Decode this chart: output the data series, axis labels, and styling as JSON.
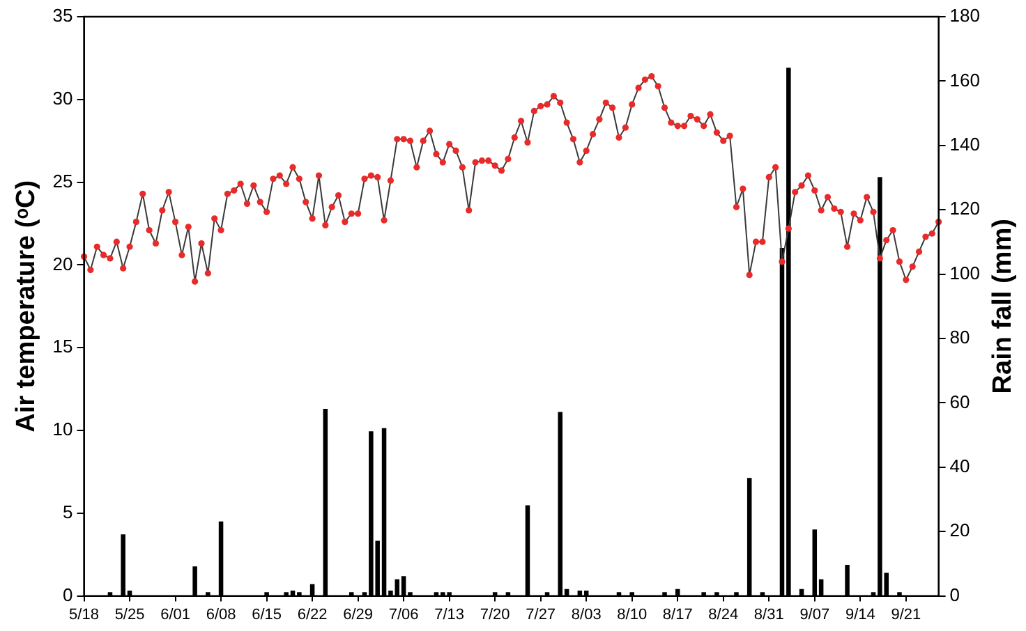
{
  "chart_data": {
    "type": "line",
    "ylabel": "Air temperature (ᵒC)",
    "y2label": "Rain fall (mm)",
    "grid": false,
    "legend": false,
    "marker": "circle",
    "categories": [
      "5/18",
      null,
      null,
      null,
      null,
      null,
      null,
      "5/25",
      null,
      null,
      null,
      null,
      null,
      null,
      "6/01",
      null,
      null,
      null,
      null,
      null,
      null,
      "6/08",
      null,
      null,
      null,
      null,
      null,
      null,
      "6/15",
      null,
      null,
      null,
      null,
      null,
      null,
      "6/22",
      null,
      null,
      null,
      null,
      null,
      null,
      "6/29",
      null,
      null,
      null,
      null,
      null,
      null,
      "7/06",
      null,
      null,
      null,
      null,
      null,
      null,
      "7/13",
      null,
      null,
      null,
      null,
      null,
      null,
      "7/20",
      null,
      null,
      null,
      null,
      null,
      null,
      "7/27",
      null,
      null,
      null,
      null,
      null,
      null,
      "8/03",
      null,
      null,
      null,
      null,
      null,
      null,
      "8/10",
      null,
      null,
      null,
      null,
      null,
      null,
      "8/17",
      null,
      null,
      null,
      null,
      null,
      null,
      "8/24",
      null,
      null,
      null,
      null,
      null,
      null,
      "8/31",
      null,
      null,
      null,
      null,
      null,
      null,
      "9/07",
      null,
      null,
      null,
      null,
      null,
      null,
      "9/14",
      null,
      null,
      null,
      null,
      null,
      null,
      "9/21",
      null,
      null,
      null,
      null,
      null
    ],
    "ylim": [
      0,
      35
    ],
    "yticks": [
      0,
      5,
      10,
      15,
      20,
      25,
      30,
      35
    ],
    "y2lim": [
      0,
      180
    ],
    "y2ticks": [
      0,
      20,
      40,
      60,
      80,
      100,
      120,
      140,
      160,
      180
    ],
    "series": [
      {
        "type": "bar",
        "axis": "y2",
        "color": "#000000",
        "values": [
          null,
          null,
          null,
          null,
          1,
          null,
          19,
          1.5,
          null,
          null,
          null,
          null,
          null,
          null,
          null,
          null,
          null,
          9,
          null,
          1,
          null,
          23,
          null,
          null,
          null,
          null,
          null,
          null,
          1,
          null,
          null,
          1,
          1.5,
          1,
          null,
          3.5,
          null,
          58,
          null,
          null,
          null,
          1,
          null,
          1,
          51,
          17,
          52,
          1.5,
          5,
          6,
          1,
          null,
          null,
          null,
          1,
          1,
          1,
          null,
          null,
          null,
          null,
          null,
          null,
          1,
          null,
          1,
          null,
          null,
          28,
          null,
          null,
          1,
          null,
          57,
          2,
          null,
          1.5,
          1.5,
          null,
          null,
          null,
          null,
          1,
          null,
          1,
          null,
          null,
          null,
          null,
          1,
          null,
          2,
          null,
          null,
          null,
          1,
          null,
          1,
          null,
          null,
          1,
          null,
          36.5,
          null,
          1,
          null,
          null,
          108,
          164,
          null,
          2,
          null,
          20.5,
          5,
          null,
          null,
          null,
          9.5,
          null,
          null,
          null,
          1,
          130,
          7,
          null,
          1,
          null,
          null,
          null,
          null,
          null,
          null
        ]
      },
      {
        "color": "#3a3a3a",
        "colors": [
          "#e82a2a",
          "#e82a2a",
          "#e82a2a",
          "#e82a2a",
          "#e82a2a",
          "#e82a2a",
          "#e82a2a",
          "#e82a2a",
          "#e82a2a",
          "#e82a2a",
          "#e82a2a",
          "#e82a2a",
          "#e82a2a",
          "#e82a2a",
          "#e82a2a",
          "#e82a2a",
          "#e82a2a",
          "#e82a2a",
          "#e82a2a",
          "#e82a2a",
          "#e82a2a",
          "#e82a2a",
          "#e82a2a",
          "#e82a2a",
          "#e82a2a",
          "#e82a2a",
          "#e82a2a",
          "#e82a2a",
          "#e82a2a",
          "#e82a2a",
          "#e82a2a",
          "#e82a2a",
          "#e82a2a",
          "#e82a2a",
          "#e82a2a",
          "#e82a2a",
          "#e82a2a",
          "#e82a2a",
          "#e82a2a",
          "#e82a2a",
          "#e82a2a",
          "#e82a2a",
          "#e82a2a",
          "#e82a2a",
          "#e82a2a",
          "#e82a2a",
          "#e82a2a",
          "#e82a2a",
          "#e82a2a",
          "#e82a2a",
          "#e82a2a",
          "#e82a2a",
          "#e82a2a",
          "#e82a2a",
          "#e82a2a",
          "#e82a2a",
          "#e82a2a",
          "#e82a2a",
          "#e82a2a",
          "#e82a2a",
          "#e82a2a",
          "#e82a2a",
          "#e82a2a",
          "#e82a2a",
          "#e82a2a",
          "#e82a2a",
          "#e82a2a",
          "#e82a2a",
          "#e82a2a",
          "#e82a2a",
          "#e82a2a",
          "#e82a2a",
          "#e82a2a",
          "#e82a2a",
          "#e82a2a",
          "#e82a2a",
          "#e82a2a",
          "#e82a2a",
          "#e82a2a",
          "#e82a2a",
          "#e82a2a",
          "#e82a2a",
          "#e82a2a",
          "#e82a2a",
          "#e82a2a",
          "#e82a2a",
          "#e82a2a",
          "#e82a2a",
          "#e82a2a",
          "#e82a2a",
          "#e82a2a",
          "#e82a2a",
          "#e82a2a",
          "#e82a2a",
          "#e82a2a",
          "#e82a2a",
          "#e82a2a",
          "#e82a2a",
          "#e82a2a",
          "#e82a2a",
          "#e82a2a",
          "#e82a2a",
          "#e82a2a",
          "#e82a2a",
          "#e82a2a",
          "#e82a2a",
          "#e82a2a",
          "#e82a2a",
          "#e82a2a",
          "#e82a2a",
          "#e82a2a",
          "#e82a2a",
          "#e82a2a",
          "#e82a2a",
          "#e82a2a",
          "#e82a2a",
          "#e82a2a",
          "#e82a2a",
          "#e82a2a",
          "#e82a2a",
          "#e82a2a",
          "#e82a2a",
          "#e82a2a",
          "#e82a2a",
          "#e82a2a",
          "#e82a2a",
          "#e82a2a",
          "#e82a2a",
          "#e82a2a",
          "#e82a2a",
          "#e82a2a",
          "#e82a2a"
        ],
        "values": [
          20.5,
          19.7,
          21.1,
          20.6,
          20.4,
          21.4,
          19.8,
          21.1,
          22.6,
          24.3,
          22.1,
          21.3,
          23.3,
          24.4,
          22.6,
          20.6,
          22.3,
          19.0,
          21.3,
          19.5,
          22.8,
          22.1,
          24.3,
          24.5,
          24.9,
          23.7,
          24.8,
          23.8,
          23.2,
          25.2,
          25.4,
          24.9,
          25.9,
          25.2,
          23.8,
          22.8,
          25.4,
          22.4,
          23.5,
          24.2,
          22.6,
          23.1,
          23.1,
          25.2,
          25.4,
          25.3,
          22.7,
          25.1,
          27.6,
          27.6,
          27.5,
          25.9,
          27.5,
          28.1,
          26.7,
          26.2,
          27.3,
          26.9,
          25.9,
          23.3,
          26.2,
          26.3,
          26.3,
          26.0,
          25.7,
          26.4,
          27.7,
          28.7,
          27.4,
          29.3,
          29.6,
          29.7,
          30.2,
          29.8,
          28.6,
          27.6,
          26.2,
          26.9,
          27.9,
          28.8,
          29.8,
          29.5,
          27.7,
          28.3,
          29.7,
          30.7,
          31.2,
          31.4,
          30.8,
          29.5,
          28.6,
          28.4,
          28.4,
          29.0,
          28.8,
          28.4,
          29.1,
          28.0,
          27.5,
          27.8,
          23.5,
          24.6,
          19.4,
          21.4,
          21.4,
          25.3,
          25.9,
          20.2,
          22.2,
          24.4,
          24.8,
          25.4,
          24.5,
          23.3,
          24.1,
          23.4,
          23.2,
          21.1,
          23.1,
          22.7,
          24.1,
          23.2,
          20.4,
          21.5,
          22.1,
          20.2,
          19.1,
          19.9,
          20.8,
          21.7,
          21.9,
          22.6
        ]
      }
    ]
  }
}
